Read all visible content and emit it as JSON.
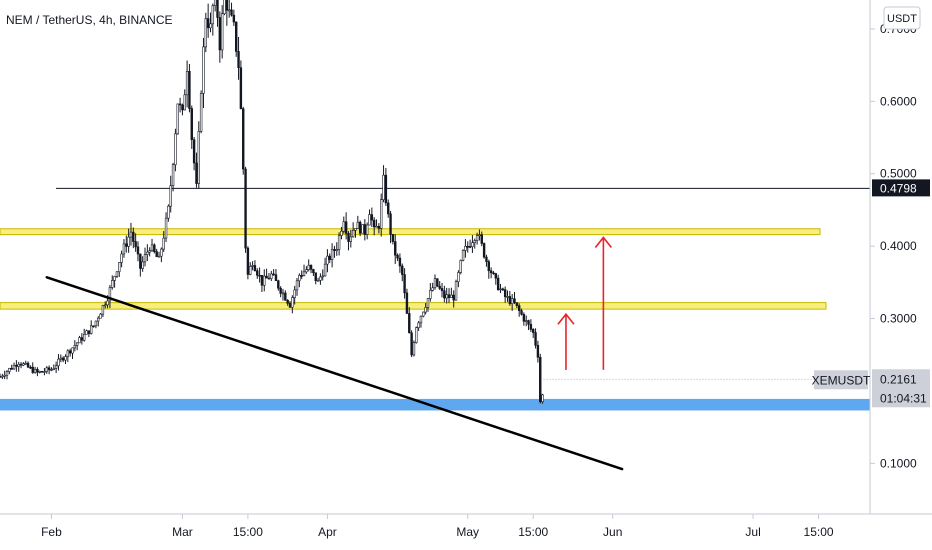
{
  "title": "NEM / TetherUS, 4h, BINANCE",
  "unit_label": "USDT",
  "colors": {
    "candle": "#131722",
    "zone_yellow": "#f7ee7d",
    "zone_yellow_edge": "#c9b800",
    "zone_blue": "#5fa8f0",
    "arrow": "#e8242a",
    "trendline": "#000000",
    "price_tag_dark": "#131722",
    "price_tag_gray": "#cdd0d8",
    "grid_line": "#e0e3eb"
  },
  "chart_data": {
    "type": "candlestick",
    "title": "NEM / TetherUS, 4h, BINANCE",
    "y_axis": {
      "unit": "USDT",
      "ticks": [
        "0.1000",
        "0.3000",
        "0.4000",
        "0.5000",
        "0.6000",
        "0.7000"
      ],
      "tick_values": [
        0.1,
        0.3,
        0.4,
        0.5,
        0.6,
        0.7
      ],
      "range": [
        0.03,
        0.74
      ]
    },
    "x_axis": {
      "ticks": [
        "Feb",
        "Mar",
        "15:00",
        "Apr",
        "May",
        "15:00",
        "Jun",
        "Jul",
        "15:00"
      ],
      "tick_days": [
        0,
        28,
        42,
        59,
        89,
        103,
        120,
        150,
        164
      ],
      "range_days": [
        -11,
        175
      ]
    },
    "price_path": [
      [
        -11,
        0.22
      ],
      [
        -7,
        0.24
      ],
      [
        -3,
        0.225
      ],
      [
        0,
        0.23
      ],
      [
        3,
        0.25
      ],
      [
        6,
        0.27
      ],
      [
        9,
        0.29
      ],
      [
        12,
        0.33
      ],
      [
        15,
        0.39
      ],
      [
        17,
        0.42
      ],
      [
        19,
        0.37
      ],
      [
        21,
        0.4
      ],
      [
        23,
        0.38
      ],
      [
        25,
        0.45
      ],
      [
        26,
        0.52
      ],
      [
        27,
        0.6
      ],
      [
        28,
        0.58
      ],
      [
        29,
        0.65
      ],
      [
        30,
        0.55
      ],
      [
        31,
        0.48
      ],
      [
        32,
        0.62
      ],
      [
        33,
        0.72
      ],
      [
        34,
        0.7
      ],
      [
        35,
        0.76
      ],
      [
        36,
        0.68
      ],
      [
        37,
        0.75
      ],
      [
        38,
        0.72
      ],
      [
        39,
        0.7
      ],
      [
        40,
        0.65
      ],
      [
        40.8,
        0.55
      ],
      [
        41.5,
        0.4
      ],
      [
        42,
        0.36
      ],
      [
        43,
        0.38
      ],
      [
        45,
        0.35
      ],
      [
        47,
        0.36
      ],
      [
        49,
        0.34
      ],
      [
        51,
        0.32
      ],
      [
        53,
        0.36
      ],
      [
        55,
        0.37
      ],
      [
        57,
        0.35
      ],
      [
        59,
        0.38
      ],
      [
        61,
        0.4
      ],
      [
        62.5,
        0.44
      ],
      [
        63.5,
        0.41
      ],
      [
        65,
        0.43
      ],
      [
        67,
        0.42
      ],
      [
        68,
        0.45
      ],
      [
        69,
        0.42
      ],
      [
        70,
        0.43
      ],
      [
        71,
        0.49
      ],
      [
        72,
        0.44
      ],
      [
        73,
        0.4
      ],
      [
        75,
        0.36
      ],
      [
        77,
        0.25
      ],
      [
        78,
        0.29
      ],
      [
        80,
        0.32
      ],
      [
        82,
        0.35
      ],
      [
        84,
        0.33
      ],
      [
        86,
        0.33
      ],
      [
        88,
        0.39
      ],
      [
        90,
        0.41
      ],
      [
        91,
        0.42
      ],
      [
        93,
        0.38
      ],
      [
        95,
        0.35
      ],
      [
        97,
        0.33
      ],
      [
        99,
        0.32
      ],
      [
        101,
        0.3
      ],
      [
        103,
        0.28
      ],
      [
        104,
        0.25
      ],
      [
        104.7,
        0.16
      ],
      [
        105.2,
        0.2161
      ]
    ],
    "last_price": "0.2161",
    "last_price_symbol": "XEMUSDT",
    "countdown": "01:04:31",
    "horizontal_line_price": "0.4798",
    "horizontal_line_value": 0.4798,
    "zones": [
      {
        "color": "yellow",
        "low": 0.416,
        "high": 0.424
      },
      {
        "color": "yellow",
        "low": 0.313,
        "high": 0.322
      },
      {
        "color": "blue",
        "low": 0.173,
        "high": 0.189
      }
    ],
    "trendline": {
      "start": [
        -1,
        0.357
      ],
      "end": [
        122,
        0.092
      ]
    },
    "arrows": [
      {
        "x_day": 110,
        "from": 0.229,
        "to": 0.306
      },
      {
        "x_day": 118,
        "from": 0.229,
        "to": 0.412
      }
    ]
  }
}
